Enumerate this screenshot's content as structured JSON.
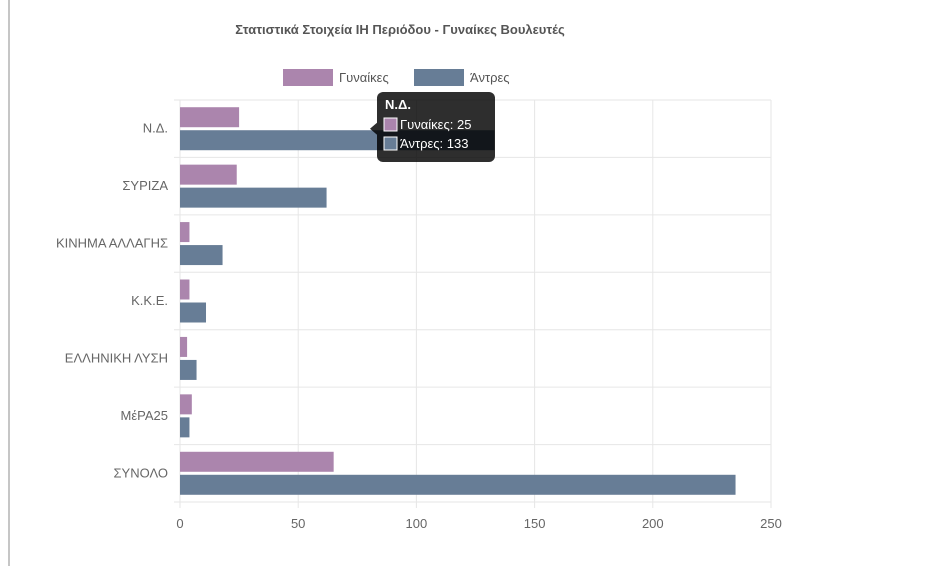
{
  "chart_data": {
    "type": "bar",
    "orientation": "horizontal",
    "title": "Στατιστικά Στοιχεία ΙΗ Περιόδου - Γυναίκες Βουλευτές",
    "categories": [
      "Ν.Δ.",
      "ΣΥΡΙΖΑ",
      "ΚΙΝΗΜΑ ΑΛΛΑΓΗΣ",
      "Κ.Κ.Ε.",
      "ΕΛΛΗΝΙΚΗ ΛΥΣΗ",
      "ΜέΡΑ25",
      "ΣΥΝΟΛΟ"
    ],
    "series": [
      {
        "name": "Γυναίκες",
        "color": "#ab85ad",
        "values": [
          25,
          24,
          4,
          4,
          3,
          5,
          65
        ]
      },
      {
        "name": "Άντρες",
        "color": "#677d96",
        "values": [
          133,
          62,
          18,
          11,
          7,
          4,
          235
        ]
      }
    ],
    "xlim": [
      0,
      250
    ],
    "xticks": [
      0,
      50,
      100,
      150,
      200,
      250
    ],
    "grid": true,
    "legend_position": "top",
    "tooltip": {
      "category": "Ν.Δ.",
      "lines": [
        "Γυναίκες: 25",
        "Άντρες: 133"
      ]
    }
  }
}
